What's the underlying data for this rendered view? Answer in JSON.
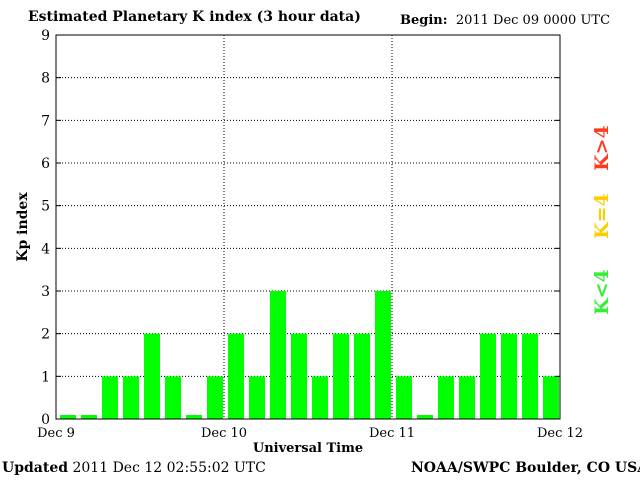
{
  "header": {
    "title": "Estimated Planetary K index (3 hour data)",
    "begin_label": "Begin:",
    "begin_value": "2011 Dec 09 0000 UTC"
  },
  "footer": {
    "updated_label": "Updated",
    "updated_value": "2011 Dec 12 02:55:02 UTC",
    "credit": "NOAA/SWPC Boulder, CO USA"
  },
  "legend": [
    {
      "label": "K>4",
      "color": "#ff3b1f"
    },
    {
      "label": "K=4",
      "color": "#ffcc00"
    },
    {
      "label": "K<4",
      "color": "#33ee33"
    }
  ],
  "chart_data": {
    "type": "bar",
    "title": "Estimated Planetary K index (3 hour data)",
    "xlabel": "Universal Time",
    "ylabel": "Kp index",
    "ylim": [
      0,
      9
    ],
    "yticks": [
      "0",
      "1",
      "2",
      "3",
      "4",
      "5",
      "6",
      "7",
      "8",
      "9"
    ],
    "xticks": [
      "Dec 9",
      "Dec 10",
      "Dec 11",
      "Dec 12"
    ],
    "bar_color": "#00ff00",
    "grid": true,
    "values": [
      0,
      0,
      1,
      1,
      2,
      1,
      0,
      1,
      2,
      1,
      3,
      2,
      1,
      2,
      2,
      3,
      1,
      0,
      1,
      1,
      2,
      2,
      2,
      1
    ]
  }
}
